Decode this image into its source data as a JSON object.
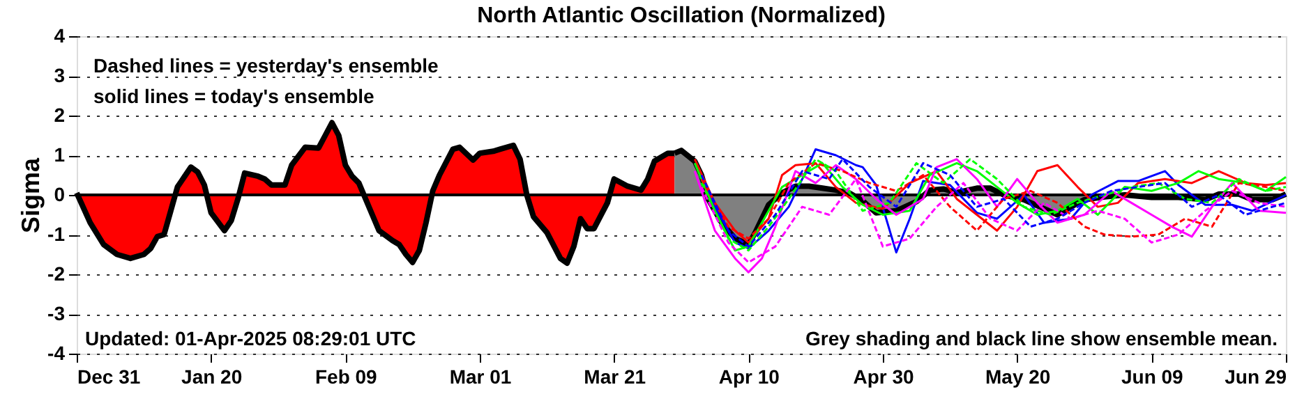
{
  "chart_data": {
    "type": "line",
    "title": "North Atlantic Oscillation (Normalized)",
    "ylabel": "Sigma",
    "xlim": [
      "2024-12-31",
      "2025-06-29"
    ],
    "ylim": [
      -4,
      4
    ],
    "yticks": [
      -4,
      -3,
      -2,
      -1,
      0,
      1,
      2,
      3,
      4
    ],
    "xticks": [
      {
        "value": "2024-12-31",
        "label": "Dec 31"
      },
      {
        "value": "2025-01-20",
        "label": "Jan 20"
      },
      {
        "value": "2025-02-09",
        "label": "Feb 09"
      },
      {
        "value": "2025-03-01",
        "label": "Mar 01"
      },
      {
        "value": "2025-03-21",
        "label": "Mar 21"
      },
      {
        "value": "2025-04-10",
        "label": "Apr 10"
      },
      {
        "value": "2025-04-30",
        "label": "Apr 30"
      },
      {
        "value": "2025-05-20",
        "label": "May 20"
      },
      {
        "value": "2025-06-09",
        "label": "Jun 09"
      },
      {
        "value": "2025-06-29",
        "label": "Jun 29"
      }
    ],
    "grid": "y",
    "ref_lines": [
      {
        "axis": "y",
        "value": 0,
        "color": "#000000"
      }
    ],
    "annotations": [
      "Dashed lines = yesterday's ensemble",
      "solid lines = today's ensemble",
      "Updated: 01-Apr-2025 08:29:01 UTC",
      "Grey shading and black line show ensemble mean."
    ],
    "series": [
      {
        "type": "area",
        "color": "#ff0000",
        "x": [
          "2024-12-31",
          "2025-01-02",
          "2025-01-04",
          "2025-01-06",
          "2025-01-08",
          "2025-01-10",
          "2025-01-11",
          "2025-01-12",
          "2025-01-13",
          "2025-01-14",
          "2025-01-15",
          "2025-01-16",
          "2025-01-17",
          "2025-01-18",
          "2025-01-19",
          "2025-01-20",
          "2025-01-22",
          "2025-01-23",
          "2025-01-24",
          "2025-01-25",
          "2025-01-27",
          "2025-01-28",
          "2025-01-29",
          "2025-01-31",
          "2025-02-01",
          "2025-02-03",
          "2025-02-05",
          "2025-02-06",
          "2025-02-07",
          "2025-02-08",
          "2025-02-09",
          "2025-02-10",
          "2025-02-11",
          "2025-02-12",
          "2025-02-13",
          "2025-02-14",
          "2025-02-16",
          "2025-02-17",
          "2025-02-18",
          "2025-02-19",
          "2025-02-20",
          "2025-02-21",
          "2025-02-22",
          "2025-02-23",
          "2025-02-25",
          "2025-02-26",
          "2025-02-28",
          "2025-03-01",
          "2025-03-03",
          "2025-03-04",
          "2025-03-06",
          "2025-03-07",
          "2025-03-08",
          "2025-03-09",
          "2025-03-11",
          "2025-03-13",
          "2025-03-14",
          "2025-03-15",
          "2025-03-16",
          "2025-03-17",
          "2025-03-18",
          "2025-03-20",
          "2025-03-21",
          "2025-03-23",
          "2025-03-25",
          "2025-03-26",
          "2025-03-27",
          "2025-03-29",
          "2025-03-30"
        ],
        "values": [
          0.05,
          -0.7,
          -1.25,
          -1.5,
          -1.6,
          -1.5,
          -1.35,
          -1.05,
          -1.0,
          -0.4,
          0.2,
          0.45,
          0.7,
          0.58,
          0.25,
          -0.45,
          -0.9,
          -0.65,
          -0.1,
          0.55,
          0.47,
          0.4,
          0.25,
          0.25,
          0.75,
          1.2,
          1.18,
          1.5,
          1.82,
          1.5,
          0.75,
          0.47,
          0.3,
          -0.1,
          -0.5,
          -0.9,
          -1.15,
          -1.25,
          -1.5,
          -1.7,
          -1.4,
          -0.7,
          0.1,
          0.5,
          1.15,
          1.2,
          0.88,
          1.05,
          1.1,
          1.15,
          1.25,
          0.9,
          0.0,
          -0.55,
          -0.95,
          -1.6,
          -1.72,
          -1.3,
          -0.6,
          -0.85,
          -0.85,
          -0.2,
          0.4,
          0.22,
          0.12,
          0.4,
          0.85,
          1.05,
          1.05
        ]
      },
      {
        "type": "area",
        "color": "#808080",
        "x": [
          "2025-03-30",
          "2025-03-31",
          "2025-04-02",
          "2025-04-03",
          "2025-04-04",
          "2025-04-06",
          "2025-04-08",
          "2025-04-10",
          "2025-04-11",
          "2025-04-13",
          "2025-04-15",
          "2025-04-17",
          "2025-04-19",
          "2025-04-21",
          "2025-04-23",
          "2025-04-25",
          "2025-04-27",
          "2025-04-29",
          "2025-05-02",
          "2025-05-05",
          "2025-05-07",
          "2025-05-09",
          "2025-05-11",
          "2025-05-14",
          "2025-05-16",
          "2025-05-18",
          "2025-05-21",
          "2025-05-24",
          "2025-05-26",
          "2025-05-28",
          "2025-05-30",
          "2025-06-02",
          "2025-06-05",
          "2025-06-09",
          "2025-06-13",
          "2025-06-17",
          "2025-06-19",
          "2025-06-22",
          "2025-06-24",
          "2025-06-27",
          "2025-06-29"
        ],
        "values": [
          1.05,
          1.12,
          0.85,
          0.5,
          -0.1,
          -0.7,
          -1.1,
          -1.25,
          -0.95,
          -0.25,
          0.05,
          0.22,
          0.22,
          0.17,
          0.12,
          0.05,
          -0.15,
          -0.45,
          -0.4,
          -0.17,
          0.12,
          0.15,
          0.06,
          0.17,
          0.17,
          0.0,
          -0.12,
          -0.35,
          -0.5,
          -0.3,
          -0.12,
          -0.05,
          0.0,
          -0.06,
          -0.06,
          -0.12,
          0.02,
          0.02,
          -0.12,
          -0.12,
          0.02
        ]
      },
      {
        "color": "#0000ff",
        "line_style": "solid",
        "x": [
          "2025-04-02",
          "2025-04-05",
          "2025-04-08",
          "2025-04-10",
          "2025-04-13",
          "2025-04-16",
          "2025-04-18",
          "2025-04-20",
          "2025-04-23",
          "2025-04-26",
          "2025-04-27",
          "2025-04-29",
          "2025-05-02",
          "2025-05-04",
          "2025-05-06",
          "2025-05-10",
          "2025-05-14",
          "2025-05-17",
          "2025-05-21",
          "2025-05-24",
          "2025-05-28",
          "2025-05-31",
          "2025-06-04",
          "2025-06-07",
          "2025-06-11",
          "2025-06-13",
          "2025-06-17",
          "2025-06-21",
          "2025-06-24",
          "2025-06-29"
        ],
        "values": [
          0.8,
          -0.3,
          -1.2,
          -1.35,
          -0.9,
          -0.3,
          0.4,
          1.15,
          1.0,
          0.75,
          0.7,
          0.25,
          -1.45,
          -0.6,
          0.35,
          0.25,
          -0.45,
          -0.6,
          0.0,
          -0.7,
          -0.6,
          0.0,
          0.35,
          0.35,
          0.6,
          0.25,
          -0.25,
          -0.25,
          -0.4,
          0.0
        ]
      },
      {
        "color": "#ff0000",
        "line_style": "solid",
        "x": [
          "2025-04-02",
          "2025-04-05",
          "2025-04-08",
          "2025-04-10",
          "2025-04-13",
          "2025-04-15",
          "2025-04-17",
          "2025-04-20",
          "2025-04-23",
          "2025-04-26",
          "2025-04-30",
          "2025-05-04",
          "2025-05-08",
          "2025-05-11",
          "2025-05-14",
          "2025-05-17",
          "2025-05-20",
          "2025-05-23",
          "2025-05-26",
          "2025-05-29",
          "2025-06-01",
          "2025-06-04",
          "2025-06-07",
          "2025-06-11",
          "2025-06-15",
          "2025-06-19",
          "2025-06-23",
          "2025-06-26",
          "2025-06-29"
        ],
        "values": [
          0.9,
          -0.2,
          -0.9,
          -1.2,
          -0.6,
          0.5,
          0.75,
          0.8,
          0.2,
          -0.2,
          -0.35,
          0.3,
          0.6,
          -0.1,
          -0.5,
          -0.9,
          -0.3,
          0.6,
          0.75,
          0.2,
          -0.3,
          -0.2,
          0.3,
          0.4,
          0.3,
          0.6,
          0.3,
          0.25,
          0.3
        ]
      },
      {
        "color": "#00ff00",
        "line_style": "solid",
        "x": [
          "2025-04-02",
          "2025-04-05",
          "2025-04-08",
          "2025-04-10",
          "2025-04-13",
          "2025-04-15",
          "2025-04-18",
          "2025-04-21",
          "2025-04-24",
          "2025-04-27",
          "2025-04-30",
          "2025-05-04",
          "2025-05-07",
          "2025-05-11",
          "2025-05-14",
          "2025-05-17",
          "2025-05-20",
          "2025-05-23",
          "2025-05-26",
          "2025-05-29",
          "2025-06-01",
          "2025-06-05",
          "2025-06-09",
          "2025-06-13",
          "2025-06-16",
          "2025-06-19",
          "2025-06-23",
          "2025-06-26",
          "2025-06-29"
        ],
        "values": [
          0.8,
          -0.4,
          -1.4,
          -1.3,
          -0.4,
          0.2,
          0.5,
          0.8,
          0.2,
          -0.25,
          -0.5,
          -0.4,
          0.5,
          0.8,
          0.6,
          0.2,
          -0.2,
          -0.5,
          -0.4,
          -0.1,
          -0.5,
          0.2,
          0.1,
          0.3,
          0.6,
          0.4,
          0.3,
          0.1,
          0.45
        ]
      },
      {
        "color": "#ff00ff",
        "line_style": "solid",
        "x": [
          "2025-04-02",
          "2025-04-05",
          "2025-04-08",
          "2025-04-10",
          "2025-04-12",
          "2025-04-14",
          "2025-04-17",
          "2025-04-20",
          "2025-04-23",
          "2025-04-26",
          "2025-04-29",
          "2025-05-02",
          "2025-05-06",
          "2025-05-08",
          "2025-05-11",
          "2025-05-14",
          "2025-05-17",
          "2025-05-20",
          "2025-05-23",
          "2025-05-26",
          "2025-05-30",
          "2025-06-03",
          "2025-06-06",
          "2025-06-09",
          "2025-06-12",
          "2025-06-15",
          "2025-06-18",
          "2025-06-21",
          "2025-06-25",
          "2025-06-29"
        ],
        "values": [
          0.6,
          -0.9,
          -1.6,
          -1.95,
          -1.6,
          -0.8,
          0.6,
          0.3,
          0.75,
          0.4,
          -0.1,
          -0.5,
          -0.1,
          0.7,
          0.9,
          0.4,
          -0.3,
          0.4,
          -0.2,
          -0.7,
          -0.5,
          0.1,
          -0.2,
          -0.5,
          -0.8,
          -1.05,
          -0.3,
          0.3,
          -0.4,
          -0.45
        ]
      },
      {
        "color": "#ff0000",
        "line_style": "dashed",
        "x": [
          "2025-04-03",
          "2025-04-07",
          "2025-04-10",
          "2025-04-13",
          "2025-04-16",
          "2025-04-20",
          "2025-04-24",
          "2025-04-28",
          "2025-05-02",
          "2025-05-06",
          "2025-05-10",
          "2025-05-14",
          "2025-05-18",
          "2025-05-22",
          "2025-05-26",
          "2025-05-30",
          "2025-06-02",
          "2025-06-06",
          "2025-06-10",
          "2025-06-14",
          "2025-06-18",
          "2025-06-22",
          "2025-06-26",
          "2025-06-29"
        ],
        "values": [
          0.4,
          -0.8,
          -1.1,
          -0.6,
          0.3,
          0.8,
          0.6,
          0.3,
          0.1,
          0.5,
          -0.3,
          -0.9,
          -0.1,
          0.1,
          -0.2,
          -0.8,
          -1.0,
          -1.05,
          -1.0,
          -0.6,
          -0.8,
          0.3,
          0.2,
          0.1
        ]
      },
      {
        "color": "#00ff00",
        "line_style": "dashed",
        "x": [
          "2025-04-03",
          "2025-04-07",
          "2025-04-10",
          "2025-04-13",
          "2025-04-16",
          "2025-04-20",
          "2025-04-23",
          "2025-04-27",
          "2025-05-01",
          "2025-05-05",
          "2025-05-09",
          "2025-05-13",
          "2025-05-17",
          "2025-05-21",
          "2025-05-25",
          "2025-05-29",
          "2025-06-02",
          "2025-06-06",
          "2025-06-10",
          "2025-06-14",
          "2025-06-18",
          "2025-06-22",
          "2025-06-26",
          "2025-06-29"
        ],
        "values": [
          0.3,
          -1.1,
          -1.4,
          -0.8,
          -0.1,
          0.9,
          0.6,
          -0.4,
          -0.2,
          0.8,
          0.3,
          0.9,
          0.4,
          -0.3,
          -0.5,
          -0.2,
          0.0,
          0.2,
          0.3,
          -0.1,
          -0.2,
          0.4,
          0.1,
          0.2
        ]
      },
      {
        "color": "#ff00ff",
        "line_style": "dashed",
        "x": [
          "2025-04-03",
          "2025-04-07",
          "2025-04-10",
          "2025-04-14",
          "2025-04-18",
          "2025-04-22",
          "2025-04-26",
          "2025-04-30",
          "2025-05-04",
          "2025-05-08",
          "2025-05-12",
          "2025-05-16",
          "2025-05-20",
          "2025-05-24",
          "2025-05-28",
          "2025-06-01",
          "2025-06-05",
          "2025-06-09",
          "2025-06-13",
          "2025-06-17",
          "2025-06-21",
          "2025-06-25",
          "2025-06-29"
        ],
        "values": [
          0.2,
          -1.2,
          -1.7,
          -1.3,
          -0.3,
          -0.5,
          0.4,
          -1.3,
          -1.1,
          -0.3,
          0.3,
          -0.6,
          -0.9,
          -0.2,
          -0.6,
          -0.4,
          -0.6,
          -1.2,
          -1.0,
          -0.4,
          0.1,
          -0.2,
          -0.3
        ]
      },
      {
        "color": "#0000ff",
        "line_style": "dashed",
        "x": [
          "2025-04-03",
          "2025-04-07",
          "2025-04-10",
          "2025-04-14",
          "2025-04-18",
          "2025-04-22",
          "2025-04-24",
          "2025-04-28",
          "2025-05-02",
          "2025-05-06",
          "2025-05-10",
          "2025-05-14",
          "2025-05-18",
          "2025-05-22",
          "2025-05-26",
          "2025-05-30",
          "2025-06-03",
          "2025-06-07",
          "2025-06-11",
          "2025-06-15",
          "2025-06-19",
          "2025-06-23",
          "2025-06-27",
          "2025-06-29"
        ],
        "values": [
          0.5,
          -0.9,
          -1.3,
          -0.5,
          0.6,
          0.4,
          0.9,
          0.2,
          -0.3,
          0.8,
          0.5,
          -0.3,
          -0.1,
          -0.8,
          -0.6,
          -0.2,
          0.1,
          0.2,
          0.3,
          -0.3,
          0.0,
          -0.5,
          -0.3,
          -0.2
        ]
      }
    ]
  }
}
